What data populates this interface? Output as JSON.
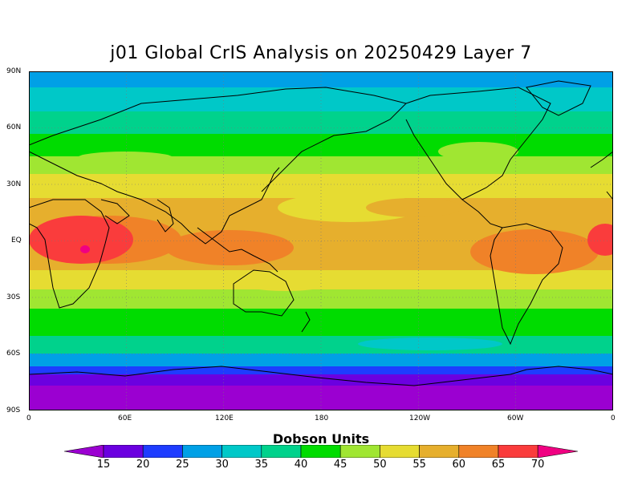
{
  "title": "j01 Global CrIS Analysis on 20250429 Layer 7",
  "lat_labels": [
    "90N",
    "60N",
    "30N",
    "EQ",
    "30S",
    "60S",
    "90S"
  ],
  "lon_labels": [
    "0",
    "60E",
    "120E",
    "180",
    "120W",
    "60W",
    "0"
  ],
  "colorbar": {
    "title": "Dobson Units",
    "levels": [
      15,
      20,
      25,
      30,
      35,
      40,
      45,
      50,
      55,
      60,
      65,
      70
    ],
    "colors": [
      "#9b00d1",
      "#6b00e0",
      "#1e3cff",
      "#00a0e6",
      "#00c8c8",
      "#00d28c",
      "#00dc00",
      "#a0e632",
      "#e6dc32",
      "#e6af2d",
      "#f08228",
      "#fa3c3c",
      "#f00082"
    ]
  }
}
